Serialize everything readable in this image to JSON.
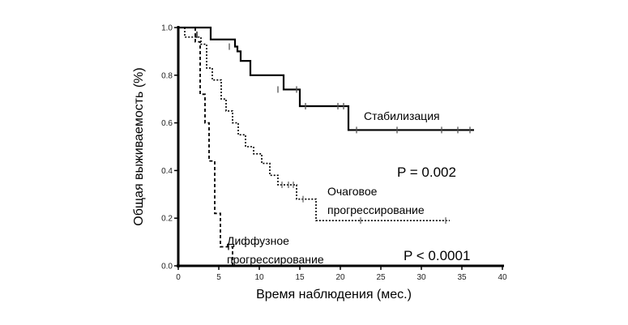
{
  "chart_data": {
    "type": "line",
    "xlabel": "Время наблюдения (мес.)",
    "ylabel": "Общая выживаемость (%)",
    "xlim": [
      0,
      40
    ],
    "ylim": [
      0,
      1.0
    ],
    "x_ticks": [
      "0",
      "5",
      "10",
      "15",
      "20",
      "25",
      "30",
      "35",
      "40"
    ],
    "y_ticks": [
      "0.0",
      "0.2",
      "0.4",
      "0.6",
      "0.8",
      "1.0"
    ],
    "series": [
      {
        "name": "Стабилизация",
        "color": "#000000",
        "censor_color": "#555555",
        "style": "solid",
        "steps": [
          [
            0,
            1.0
          ],
          [
            4,
            0.95
          ],
          [
            7,
            0.92
          ],
          [
            7.3,
            0.9
          ],
          [
            7.7,
            0.86
          ],
          [
            8.9,
            0.8
          ],
          [
            13,
            0.74
          ],
          [
            15,
            0.67
          ],
          [
            21,
            0.57
          ],
          [
            36.5,
            0.57
          ]
        ],
        "censored": [
          [
            6.3,
            0.92
          ],
          [
            12.3,
            0.74
          ],
          [
            14.6,
            0.74
          ],
          [
            15.7,
            0.67
          ],
          [
            19.7,
            0.67
          ],
          [
            20.4,
            0.67
          ],
          [
            22,
            0.57
          ],
          [
            27,
            0.57
          ],
          [
            32.5,
            0.57
          ],
          [
            34.5,
            0.57
          ],
          [
            36,
            0.57
          ]
        ]
      },
      {
        "name": "Очаговое прогрессирование",
        "color": "#000000",
        "censor_color": "#666666",
        "style": "dotted",
        "steps": [
          [
            0,
            1.0
          ],
          [
            0.8,
            0.96
          ],
          [
            2.8,
            0.93
          ],
          [
            3.5,
            0.83
          ],
          [
            4.2,
            0.78
          ],
          [
            5.3,
            0.7
          ],
          [
            5.9,
            0.65
          ],
          [
            6.7,
            0.6
          ],
          [
            7.4,
            0.55
          ],
          [
            8.3,
            0.5
          ],
          [
            9.3,
            0.47
          ],
          [
            10.3,
            0.43
          ],
          [
            11.3,
            0.38
          ],
          [
            12.3,
            0.34
          ],
          [
            14.6,
            0.28
          ],
          [
            17,
            0.19
          ],
          [
            33.5,
            0.19
          ]
        ],
        "censored": [
          [
            12.8,
            0.34
          ],
          [
            13.6,
            0.34
          ],
          [
            14.2,
            0.34
          ],
          [
            15.4,
            0.28
          ],
          [
            22.5,
            0.19
          ],
          [
            33,
            0.19
          ]
        ]
      },
      {
        "name": "Диффузное прогрессирование",
        "color": "#000000",
        "censor_color": "#000000",
        "style": "dashed",
        "steps": [
          [
            0,
            1.0
          ],
          [
            2.1,
            0.94
          ],
          [
            2.7,
            0.72
          ],
          [
            3.3,
            0.6
          ],
          [
            3.8,
            0.44
          ],
          [
            4.5,
            0.22
          ],
          [
            5.2,
            0.08
          ],
          [
            6.7,
            0.0
          ]
        ],
        "censored": [
          [
            2.3,
            0.97
          ],
          [
            6.2,
            0.08
          ]
        ]
      }
    ],
    "annotations": {
      "p_stabilization": "P = 0.002",
      "p_overall": "P < 0.0001",
      "label_stabilization": "Стабилизация",
      "label_focal_line1": "Очаговое",
      "label_focal_line2": "прогрессирование",
      "label_diffuse_line1": "Диффузное",
      "label_diffuse_line2": "прогрессирование"
    }
  }
}
